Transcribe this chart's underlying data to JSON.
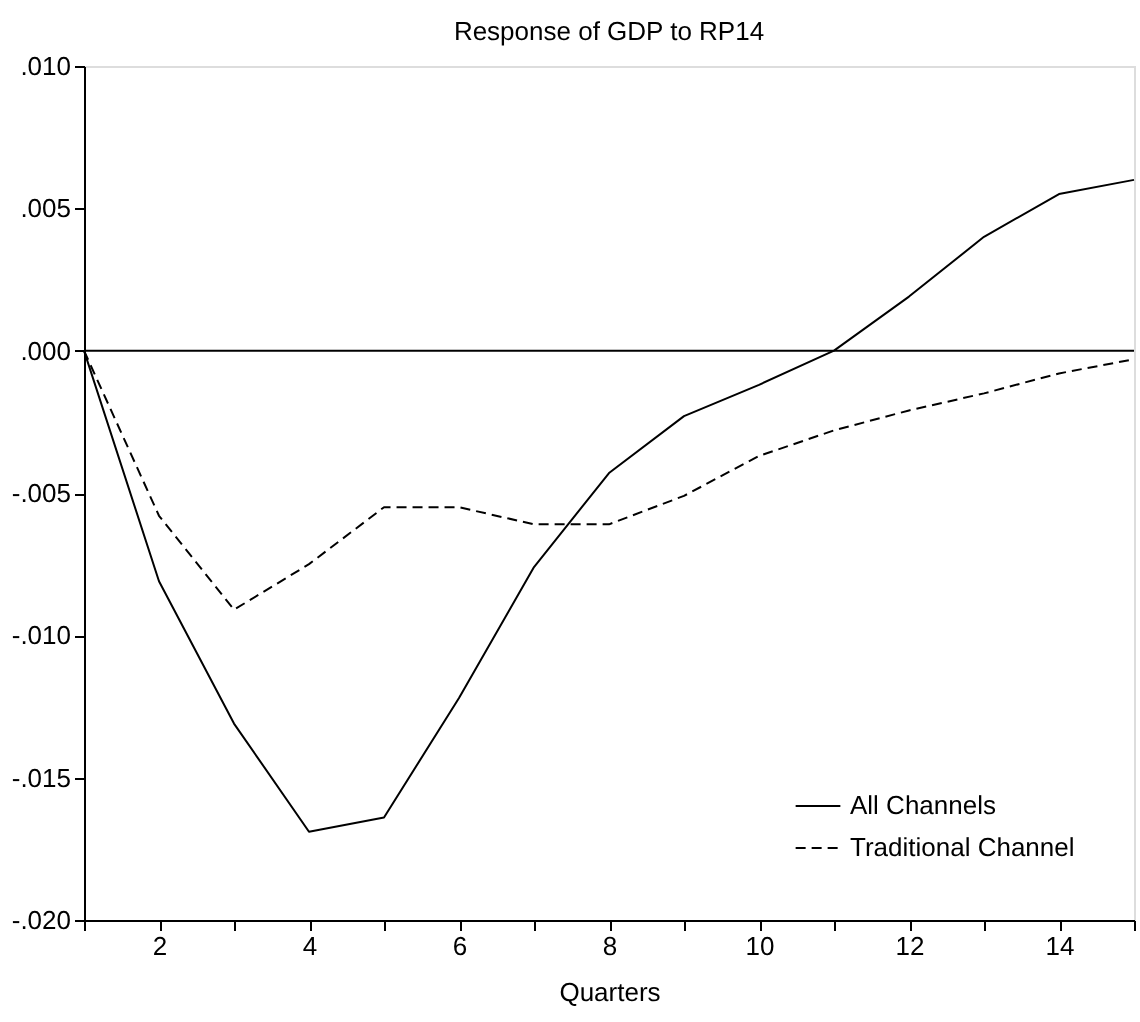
{
  "chart_data": {
    "type": "line",
    "title": "Response of GDP to RP14",
    "xlabel": "Quarters",
    "x": [
      1,
      2,
      3,
      4,
      5,
      6,
      7,
      8,
      9,
      10,
      11,
      12,
      13,
      14,
      15
    ],
    "series": [
      {
        "name": "All Channels",
        "color": "#000000",
        "line_style": "solid",
        "values": [
          0,
          -0.0081,
          -0.0131,
          -0.0169,
          -0.0164,
          -0.0122,
          -0.0076,
          -0.0043,
          -0.0023,
          -0.0012,
          0.0,
          0.0019,
          0.004,
          0.0055,
          0.006
        ]
      },
      {
        "name": "Traditional Channel",
        "color": "#000000",
        "line_style": "dashed",
        "values": [
          0,
          -0.0058,
          -0.0091,
          -0.0075,
          -0.0055,
          -0.0055,
          -0.0061,
          -0.0061,
          -0.0051,
          -0.0037,
          -0.0028,
          -0.0021,
          -0.0015,
          -0.0008,
          -0.0003
        ]
      }
    ],
    "xlim": [
      1,
      15
    ],
    "xticks": [
      {
        "value": 1,
        "label": null
      },
      2,
      {
        "value": 3,
        "label": null
      },
      4,
      {
        "value": 5,
        "label": null
      },
      6,
      {
        "value": 7,
        "label": null
      },
      8,
      {
        "value": 9,
        "label": null
      },
      10,
      {
        "value": 11,
        "label": null
      },
      12,
      {
        "value": 13,
        "label": null
      },
      14,
      {
        "value": 15,
        "label": null
      }
    ],
    "ylim": [
      -0.02,
      0.01
    ],
    "yticks": [
      {
        "value": 0.01,
        "label": ".010"
      },
      {
        "value": 0.005,
        "label": ".005"
      },
      {
        "value": 0,
        "label": ".000"
      },
      {
        "value": -0.005,
        "label": "-.005"
      },
      {
        "value": -0.01,
        "label": "-.010"
      },
      {
        "value": -0.015,
        "label": "-.015"
      },
      {
        "value": -0.02,
        "label": "-.020"
      }
    ],
    "ref_lines": [
      {
        "axis": "y",
        "value": 0,
        "label": null,
        "color": "#000000"
      }
    ],
    "grid": false,
    "legend": "bottom right",
    "marker": "none"
  }
}
